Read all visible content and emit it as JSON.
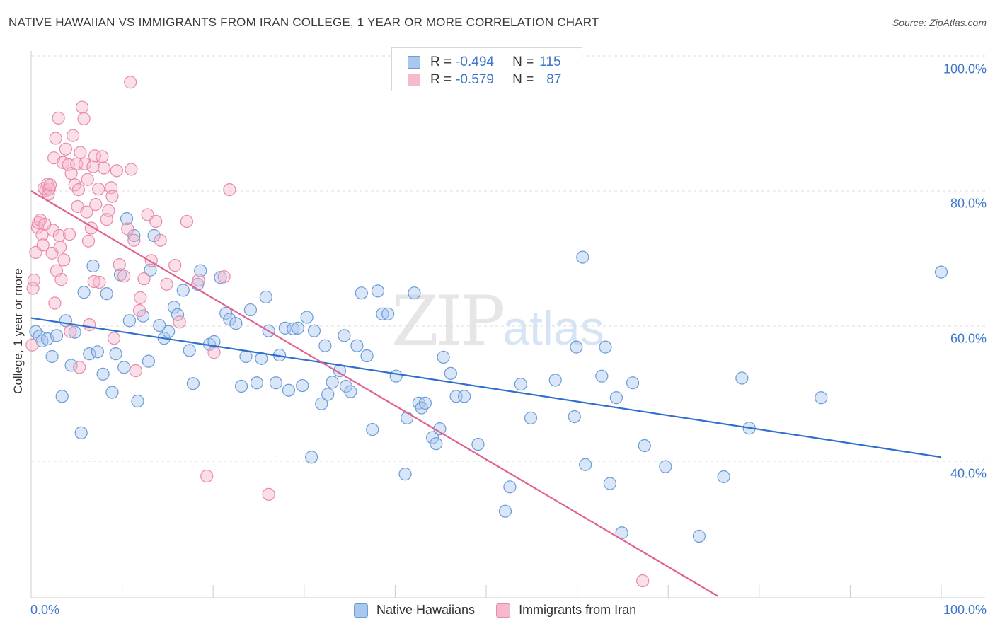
{
  "title": "NATIVE HAWAIIAN VS IMMIGRANTS FROM IRAN COLLEGE, 1 YEAR OR MORE CORRELATION CHART",
  "source": "Source: ZipAtlas.com",
  "watermark": {
    "zip": "ZIP",
    "atlas": "atlas"
  },
  "legend_top": {
    "series1": {
      "r_key": "R =",
      "r_value": "-0.494",
      "n_key": "N =",
      "n_value": "115"
    },
    "series2": {
      "r_key": "R =",
      "r_value": "-0.579",
      "n_key": "N =",
      "n_value": "87"
    }
  },
  "colors": {
    "blue_fill": "#aac8ee",
    "blue_stroke": "#6b9bd8",
    "blue_line": "#2f6fcf",
    "pink_fill": "#f6b8cb",
    "pink_stroke": "#e88aa8",
    "pink_line": "#e0628f",
    "grid": "#dddddd",
    "tick_text": "#3d76c9"
  },
  "chart_data": {
    "type": "scatter",
    "title": "NATIVE HAWAIIAN VS IMMIGRANTS FROM IRAN COLLEGE, 1 YEAR OR MORE CORRELATION CHART",
    "xlabel": "",
    "ylabel": "College, 1 year or more",
    "xlim": [
      0,
      100
    ],
    "ylim": [
      20,
      102
    ],
    "x_tick_labels": [
      "0.0%",
      "100.0%"
    ],
    "y_ticks": [
      40,
      60,
      80,
      100
    ],
    "y_tick_labels": [
      "40.0%",
      "60.0%",
      "80.0%",
      "100.0%"
    ],
    "grid": true,
    "legend_position": "bottom",
    "series": [
      {
        "name": "Native Hawaiians",
        "r": -0.494,
        "n": 115,
        "trend": {
          "x": [
            0,
            100
          ],
          "y": [
            61.2,
            40.6
          ]
        },
        "points": [
          [
            0.5,
            59.2
          ],
          [
            0.9,
            58.5
          ],
          [
            1.2,
            57.8
          ],
          [
            1.8,
            58.1
          ],
          [
            2.3,
            55.5
          ],
          [
            2.8,
            58.6
          ],
          [
            3.4,
            49.6
          ],
          [
            3.8,
            60.8
          ],
          [
            4.4,
            54.2
          ],
          [
            4.8,
            59.1
          ],
          [
            5.5,
            44.2
          ],
          [
            5.8,
            65.0
          ],
          [
            6.4,
            55.9
          ],
          [
            6.8,
            68.9
          ],
          [
            7.3,
            56.2
          ],
          [
            7.9,
            52.9
          ],
          [
            8.3,
            64.8
          ],
          [
            8.9,
            50.2
          ],
          [
            9.3,
            55.9
          ],
          [
            9.8,
            67.6
          ],
          [
            10.2,
            53.9
          ],
          [
            10.5,
            75.9
          ],
          [
            10.8,
            60.8
          ],
          [
            11.3,
            73.4
          ],
          [
            11.7,
            48.9
          ],
          [
            12.3,
            61.5
          ],
          [
            12.9,
            54.8
          ],
          [
            13.1,
            68.3
          ],
          [
            13.5,
            73.4
          ],
          [
            14.1,
            60.1
          ],
          [
            14.6,
            58.2
          ],
          [
            15.1,
            59.2
          ],
          [
            15.7,
            62.8
          ],
          [
            16.1,
            61.7
          ],
          [
            16.7,
            65.3
          ],
          [
            17.4,
            56.4
          ],
          [
            17.8,
            51.5
          ],
          [
            18.3,
            66.2
          ],
          [
            18.6,
            68.2
          ],
          [
            19.6,
            57.3
          ],
          [
            20.1,
            57.7
          ],
          [
            20.8,
            67.2
          ],
          [
            21.4,
            61.9
          ],
          [
            21.8,
            61.0
          ],
          [
            22.5,
            60.4
          ],
          [
            23.1,
            51.1
          ],
          [
            23.6,
            55.5
          ],
          [
            24.1,
            62.4
          ],
          [
            24.8,
            51.6
          ],
          [
            25.3,
            55.2
          ],
          [
            25.8,
            64.3
          ],
          [
            26.1,
            59.3
          ],
          [
            26.9,
            51.6
          ],
          [
            27.3,
            55.7
          ],
          [
            27.9,
            59.7
          ],
          [
            28.3,
            50.5
          ],
          [
            28.8,
            59.6
          ],
          [
            29.3,
            59.7
          ],
          [
            29.8,
            51.2
          ],
          [
            30.3,
            61.3
          ],
          [
            30.8,
            40.6
          ],
          [
            31.1,
            59.3
          ],
          [
            31.9,
            48.5
          ],
          [
            32.3,
            57.1
          ],
          [
            32.6,
            49.9
          ],
          [
            33.1,
            51.7
          ],
          [
            33.9,
            53.4
          ],
          [
            34.4,
            58.6
          ],
          [
            34.6,
            51.1
          ],
          [
            35.1,
            50.3
          ],
          [
            35.8,
            57.1
          ],
          [
            36.3,
            64.9
          ],
          [
            36.9,
            55.6
          ],
          [
            37.5,
            44.7
          ],
          [
            38.1,
            65.2
          ],
          [
            38.6,
            61.8
          ],
          [
            39.2,
            61.8
          ],
          [
            40.1,
            52.6
          ],
          [
            41.1,
            38.1
          ],
          [
            41.3,
            46.4
          ],
          [
            42.1,
            64.9
          ],
          [
            42.6,
            48.6
          ],
          [
            42.9,
            47.9
          ],
          [
            43.3,
            48.6
          ],
          [
            44.1,
            43.5
          ],
          [
            44.5,
            42.6
          ],
          [
            44.9,
            44.8
          ],
          [
            45.3,
            55.4
          ],
          [
            46.1,
            53.0
          ],
          [
            46.7,
            49.6
          ],
          [
            47.6,
            49.6
          ],
          [
            49.1,
            42.5
          ],
          [
            52.1,
            32.6
          ],
          [
            52.6,
            36.2
          ],
          [
            53.8,
            51.4
          ],
          [
            54.9,
            46.4
          ],
          [
            57.6,
            52.0
          ],
          [
            59.7,
            46.6
          ],
          [
            59.9,
            56.9
          ],
          [
            60.6,
            70.2
          ],
          [
            60.9,
            39.5
          ],
          [
            62.7,
            52.6
          ],
          [
            63.1,
            56.9
          ],
          [
            63.6,
            36.7
          ],
          [
            64.3,
            49.4
          ],
          [
            64.9,
            29.4
          ],
          [
            66.1,
            51.6
          ],
          [
            67.4,
            42.3
          ],
          [
            69.7,
            39.2
          ],
          [
            73.4,
            28.9
          ],
          [
            76.1,
            37.7
          ],
          [
            78.1,
            52.3
          ],
          [
            78.9,
            44.9
          ],
          [
            86.8,
            49.4
          ],
          [
            100.0,
            68.0
          ]
        ]
      },
      {
        "name": "Immigrants from Iran",
        "r": -0.579,
        "n": 87,
        "trend": {
          "x": [
            0,
            75.5
          ],
          "y": [
            80.0,
            20.0
          ]
        },
        "points": [
          [
            0.1,
            57.2
          ],
          [
            0.2,
            65.6
          ],
          [
            0.3,
            66.8
          ],
          [
            0.5,
            70.9
          ],
          [
            0.7,
            74.6
          ],
          [
            0.8,
            75.3
          ],
          [
            1.0,
            75.7
          ],
          [
            1.2,
            73.5
          ],
          [
            1.3,
            72.0
          ],
          [
            1.4,
            80.4
          ],
          [
            1.6,
            80.1
          ],
          [
            1.8,
            81.0
          ],
          [
            1.9,
            79.5
          ],
          [
            2.0,
            80.3
          ],
          [
            2.3,
            70.8
          ],
          [
            2.4,
            74.2
          ],
          [
            2.5,
            84.9
          ],
          [
            2.7,
            87.8
          ],
          [
            2.8,
            68.2
          ],
          [
            3.1,
            73.4
          ],
          [
            3.2,
            71.7
          ],
          [
            3.3,
            66.9
          ],
          [
            3.5,
            84.2
          ],
          [
            3.6,
            69.8
          ],
          [
            3.8,
            86.2
          ],
          [
            4.1,
            83.9
          ],
          [
            4.2,
            73.6
          ],
          [
            4.4,
            82.6
          ],
          [
            4.6,
            88.2
          ],
          [
            4.8,
            80.9
          ],
          [
            5.0,
            84.0
          ],
          [
            5.1,
            77.7
          ],
          [
            5.2,
            80.2
          ],
          [
            5.4,
            85.7
          ],
          [
            5.6,
            92.4
          ],
          [
            5.8,
            90.7
          ],
          [
            5.9,
            84.0
          ],
          [
            6.1,
            76.9
          ],
          [
            6.2,
            81.7
          ],
          [
            6.3,
            72.6
          ],
          [
            6.4,
            60.2
          ],
          [
            6.6,
            74.5
          ],
          [
            6.8,
            83.6
          ],
          [
            7.0,
            85.2
          ],
          [
            7.1,
            78.0
          ],
          [
            7.4,
            80.3
          ],
          [
            7.5,
            66.5
          ],
          [
            7.8,
            85.1
          ],
          [
            8.0,
            83.4
          ],
          [
            8.3,
            75.8
          ],
          [
            8.5,
            77.1
          ],
          [
            8.8,
            80.5
          ],
          [
            9.1,
            58.2
          ],
          [
            9.4,
            83.0
          ],
          [
            9.7,
            69.1
          ],
          [
            10.2,
            67.4
          ],
          [
            10.6,
            74.4
          ],
          [
            11.0,
            83.2
          ],
          [
            11.3,
            72.7
          ],
          [
            11.5,
            53.4
          ],
          [
            12.0,
            64.2
          ],
          [
            12.4,
            67.0
          ],
          [
            12.8,
            76.5
          ],
          [
            13.2,
            69.7
          ],
          [
            13.7,
            75.5
          ],
          [
            14.2,
            72.7
          ],
          [
            14.9,
            66.2
          ],
          [
            15.8,
            69.0
          ],
          [
            16.3,
            60.6
          ],
          [
            17.1,
            75.5
          ],
          [
            18.4,
            66.8
          ],
          [
            19.3,
            37.8
          ],
          [
            20.1,
            56.1
          ],
          [
            21.2,
            67.3
          ],
          [
            21.8,
            80.2
          ],
          [
            26.1,
            35.1
          ],
          [
            67.2,
            22.3
          ],
          [
            3.0,
            90.8
          ],
          [
            10.9,
            96.1
          ],
          [
            4.3,
            59.2
          ],
          [
            2.1,
            80.9
          ],
          [
            1.5,
            75.1
          ],
          [
            6.9,
            66.6
          ],
          [
            8.9,
            79.2
          ],
          [
            11.9,
            62.3
          ],
          [
            5.3,
            53.9
          ],
          [
            2.6,
            63.4
          ]
        ]
      }
    ]
  },
  "legend_bottom": {
    "series1": "Native Hawaiians",
    "series2": "Immigrants from Iran"
  },
  "axes": {
    "x_left": "0.0%",
    "x_right": "100.0%",
    "y_label": "College, 1 year or more",
    "y_ticks": [
      "100.0%",
      "80.0%",
      "60.0%",
      "40.0%"
    ]
  }
}
